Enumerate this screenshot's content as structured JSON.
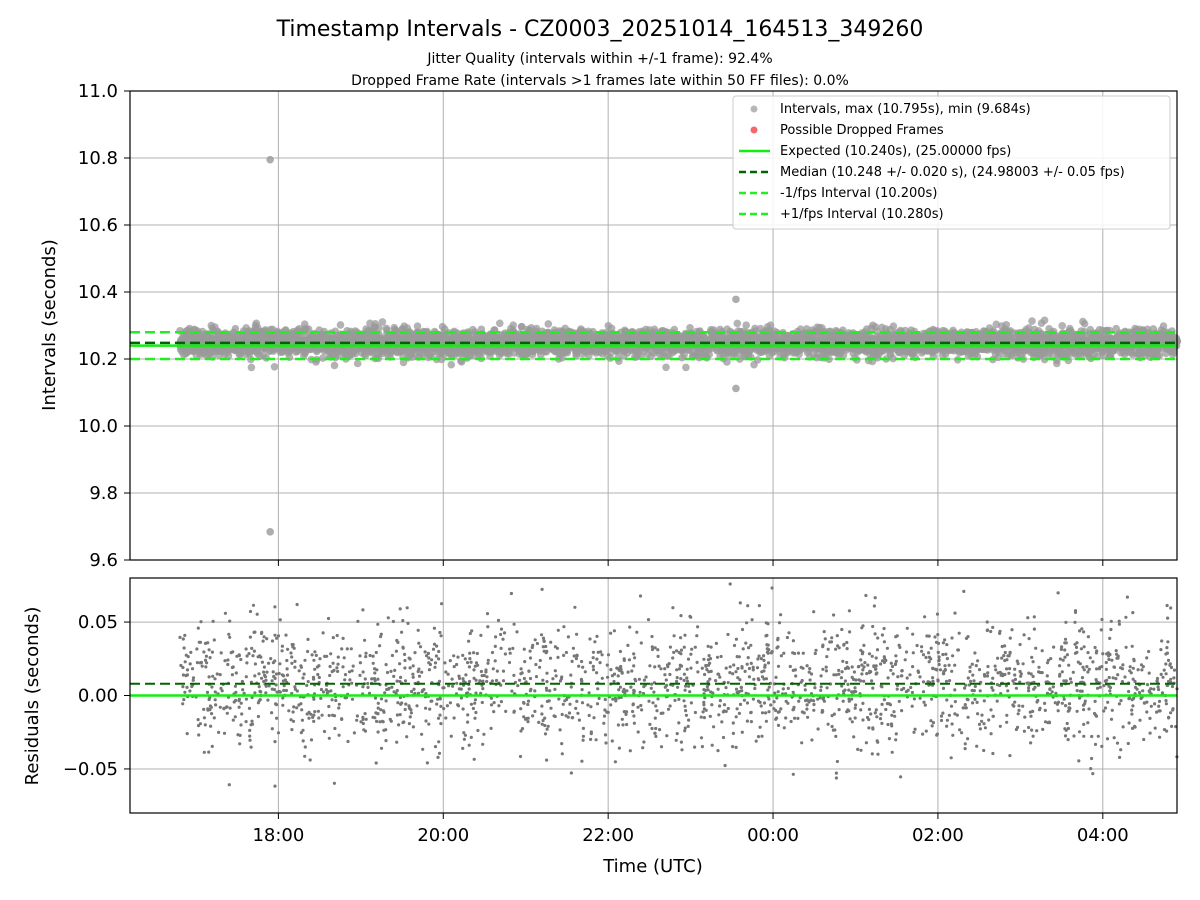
{
  "title": "Timestamp Intervals - CZ0003_20251014_164513_349260",
  "subtitle_1": "Jitter Quality (intervals within +/-1 frame): 92.4%",
  "subtitle_2": "Dropped Frame Rate (intervals >1 frames late within 50 FF files): 0.0%",
  "colors": {
    "points": "#999999",
    "dropped": "#ee4444",
    "expected": "#11ee11",
    "median": "#006400",
    "bounds": "#22ee22",
    "residual_points": "#777777",
    "grid": "#b0b0b0"
  },
  "chart_data": [
    {
      "type": "scatter",
      "name": "intervals-panel",
      "ylabel": "Intervals (seconds)",
      "xlabel": "",
      "ylim": [
        9.6,
        11.0
      ],
      "xlim_hours": [
        16.2,
        28.9
      ],
      "yticks": [
        9.6,
        9.8,
        10.0,
        10.2,
        10.4,
        10.6,
        10.8,
        11.0
      ],
      "ytick_labels": [
        "9.6",
        "9.8",
        "10.0",
        "10.2",
        "10.4",
        "10.6",
        "10.8",
        "11.0"
      ],
      "grid": true,
      "legend_position": "top-right",
      "point_count": 4200,
      "data_start_hour": 16.8,
      "data_end_hour": 28.9,
      "legend": [
        "Intervals, max (10.795s), min (9.684s)",
        "Possible Dropped Frames",
        "Expected (10.240s), (25.00000 fps)",
        "Median (10.248 +/- 0.020 s), (24.98003 +/- 0.05 fps)",
        "-1/fps Interval (10.200s)",
        "+1/fps Interval (10.280s)"
      ],
      "lines": {
        "expected": 10.24,
        "median": 10.248,
        "minus_one_frame": 10.2,
        "plus_one_frame": 10.28
      },
      "distribution": {
        "center": 10.248,
        "std": 0.02
      },
      "outliers": [
        {
          "x_hour": 17.9,
          "y": 10.795
        },
        {
          "x_hour": 17.9,
          "y": 9.684
        },
        {
          "x_hour": 23.55,
          "y": 10.378
        },
        {
          "x_hour": 23.55,
          "y": 10.112
        }
      ]
    },
    {
      "type": "scatter",
      "name": "residuals-panel",
      "ylabel": "Residuals (seconds)",
      "xlabel": "Time (UTC)",
      "ylim": [
        -0.08,
        0.08
      ],
      "yticks": [
        -0.05,
        0.0,
        0.05
      ],
      "ytick_labels": [
        "−0.05",
        "0.00",
        "0.05"
      ],
      "grid": true,
      "point_count": 2200,
      "lines": {
        "expected": 0.0,
        "median": 0.008
      },
      "distribution": {
        "center": 0.008,
        "std": 0.022
      },
      "xticks_hours": [
        18,
        20,
        22,
        24,
        26,
        28
      ],
      "xtick_labels": [
        "18:00",
        "20:00",
        "22:00",
        "00:00",
        "02:00",
        "04:00"
      ]
    }
  ]
}
